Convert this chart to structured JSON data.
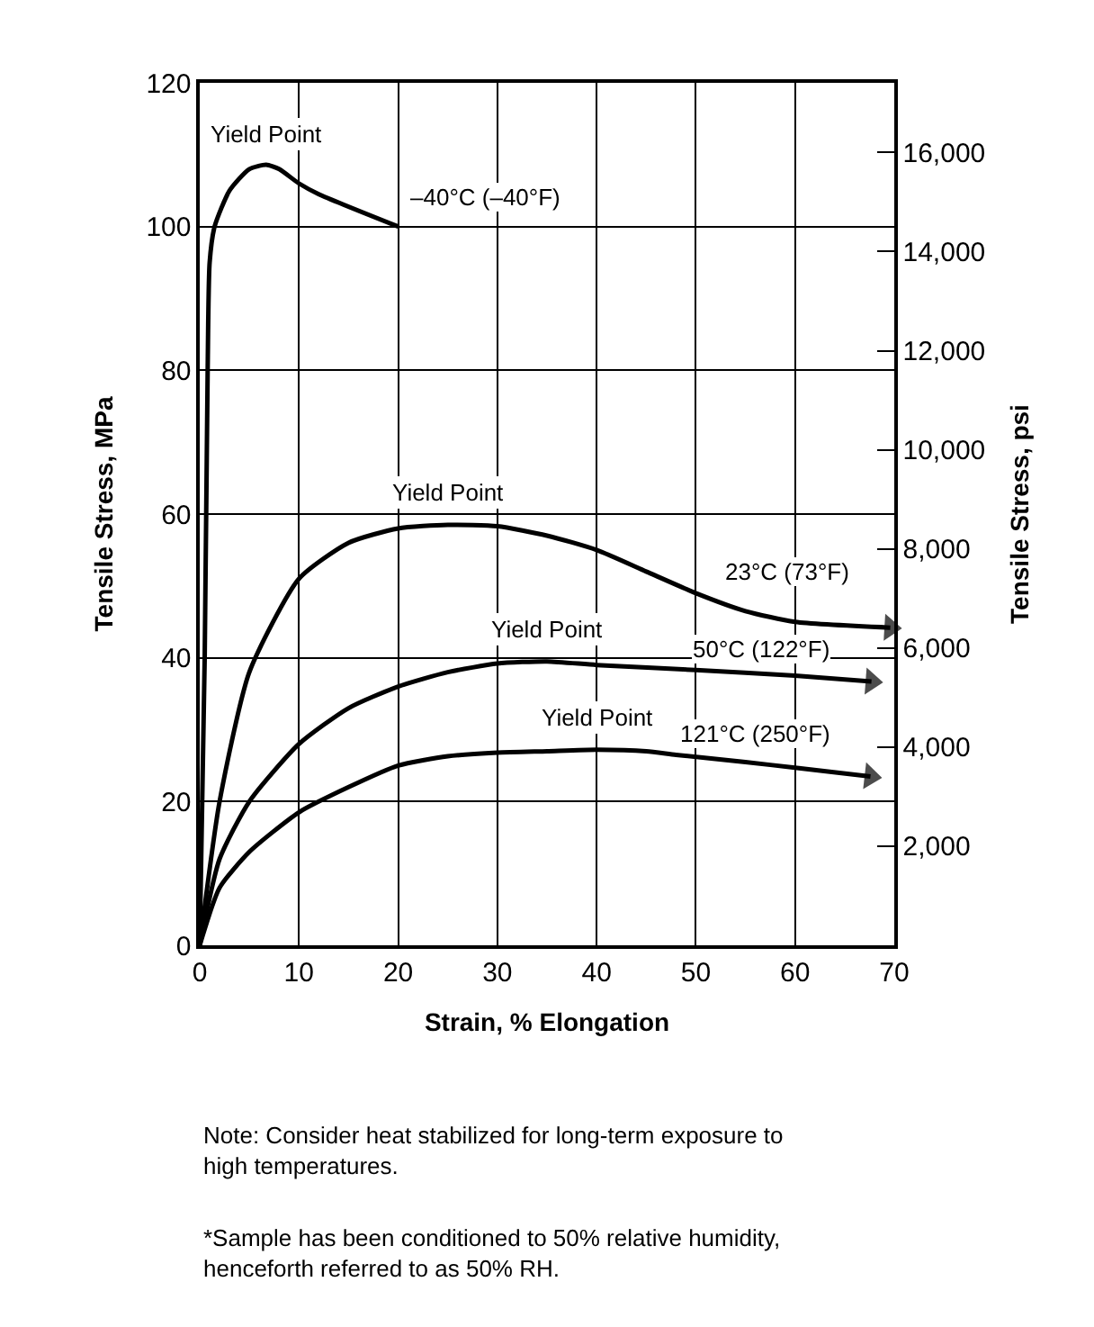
{
  "chart_data": {
    "type": "line",
    "xlabel": "Strain, % Elongation",
    "ylabel": "Tensile Stress, MPa",
    "y2label": "Tensile Stress, psi",
    "xlim": [
      0,
      70
    ],
    "xticks": [
      0,
      10,
      20,
      30,
      40,
      50,
      60,
      70
    ],
    "ylim": [
      0,
      120
    ],
    "yticks": [
      0,
      20,
      40,
      60,
      80,
      100,
      120
    ],
    "y2lim": [
      0,
      17405
    ],
    "y2ticks": [
      {
        "value": 2000,
        "label": "2,000"
      },
      {
        "value": 4000,
        "label": "4,000"
      },
      {
        "value": 6000,
        "label": "6,000"
      },
      {
        "value": 8000,
        "label": "8,000"
      },
      {
        "value": 10000,
        "label": "10,000"
      },
      {
        "value": 12000,
        "label": "12,000"
      },
      {
        "value": 14000,
        "label": "14,000"
      },
      {
        "value": 16000,
        "label": "16,000"
      }
    ],
    "grid": true,
    "legend": false,
    "marker": "none",
    "line_style": "solid",
    "series": [
      {
        "name": "–40°C (–40°F)",
        "color": "#000000",
        "x": [
          0,
          0.5,
          0.8,
          1,
          1.5,
          3,
          5,
          6.7,
          8,
          10,
          12,
          20
        ],
        "values": [
          0,
          40,
          80,
          95,
          100,
          105,
          108,
          108.6,
          108,
          106,
          104.5,
          100
        ]
      },
      {
        "name": "23°C (73°F)",
        "color": "#000000",
        "x": [
          0,
          2,
          5,
          10,
          15,
          20,
          25,
          30,
          35,
          40,
          45,
          50,
          55,
          60,
          69.6
        ],
        "values": [
          0,
          20,
          38,
          51,
          56,
          58,
          58.5,
          58.3,
          57,
          55,
          52,
          49,
          46.5,
          45,
          44.2
        ]
      },
      {
        "name": "50°C (122°F)",
        "color": "#000000",
        "x": [
          0,
          2,
          5,
          10,
          15,
          20,
          25,
          30,
          35,
          40,
          50,
          60,
          67.7
        ],
        "values": [
          0,
          12,
          20,
          28,
          33,
          36,
          38,
          39.2,
          39.5,
          39,
          38.3,
          37.5,
          36.7
        ]
      },
      {
        "name": "121°C (250°F)",
        "color": "#000000",
        "x": [
          0,
          2,
          5,
          10,
          15,
          20,
          25,
          30,
          35,
          40,
          45,
          48,
          55,
          60,
          67.6
        ],
        "values": [
          0,
          8,
          13,
          18.5,
          22,
          25,
          26.3,
          26.8,
          27,
          27.2,
          27,
          26.5,
          25.5,
          24.7,
          23.5
        ]
      }
    ],
    "annotations": [
      {
        "text": "Yield Point",
        "x": 6.7,
        "y": 108.6
      },
      {
        "text": "Yield Point",
        "x": 25,
        "y": 58.5
      },
      {
        "text": "Yield Point",
        "x": 35,
        "y": 39.5
      },
      {
        "text": "Yield Point",
        "x": 40,
        "y": 27.2
      },
      "Note: Consider heat stabilized for long-term exposure to high temperatures.",
      "*Sample has been conditioned to 50% relative humidity, henceforth referred to as 50% RH."
    ]
  }
}
